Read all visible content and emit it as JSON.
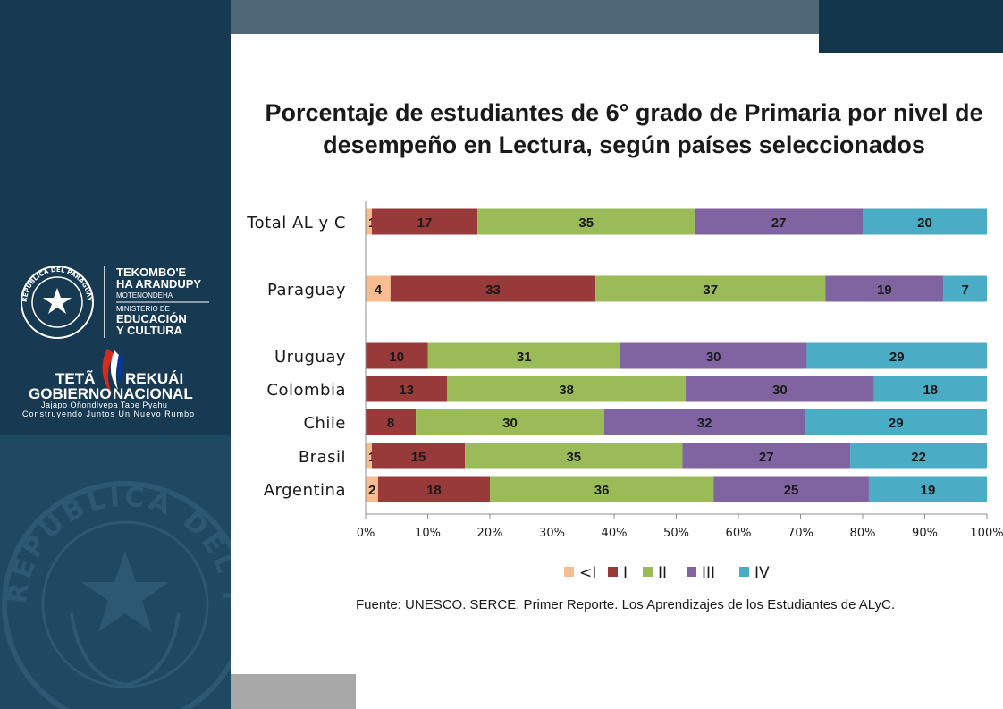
{
  "branding": {
    "ministry_line1": "TEKOMBO'E",
    "ministry_line2": "HA ARANDUPY",
    "ministry_line3": "MOTENONDEHA",
    "ministry_line4": "MINISTERIO DE",
    "ministry_line5": "EDUCACIÓN",
    "ministry_line6": "Y CULTURA",
    "seal_text": "REPUBLICA DEL PARAGUAY",
    "gov_line1a": "TETÃ",
    "gov_line1b": "REKUÁI",
    "gov_line2a": "GOBIERNO",
    "gov_line2b": "NACIONAL",
    "gov_tagline1": "Jajapo Oñondivepa Tape Pyahu",
    "gov_tagline2": "Construyendo Juntos Un Nuevo Rumbo",
    "watermark_text": "REPUBLICA DEL PARAGUAY"
  },
  "colors": {
    "sidebar": "#173a52",
    "lt_I": "#f7bc90",
    "I": "#983a3a",
    "II": "#9bbb59",
    "III": "#8064a2",
    "IV": "#4bacc6"
  },
  "chart_data": {
    "type": "bar",
    "orientation": "horizontal",
    "stacked": "percent",
    "title": "Porcentaje de estudiantes de 6° grado de Primaria por nivel de desempeño en Lectura, según países seleccionados",
    "categories": [
      "Total AL y C",
      "Paraguay",
      "Uruguay",
      "Colombia",
      "Chile",
      "Brasil",
      "Argentina"
    ],
    "series": [
      {
        "name": "<I",
        "values": [
          1,
          4,
          0,
          0,
          0,
          1,
          2
        ]
      },
      {
        "name": "I",
        "values": [
          17,
          33,
          10,
          13,
          8,
          15,
          18
        ]
      },
      {
        "name": "II",
        "values": [
          35,
          37,
          31,
          38,
          30,
          35,
          36
        ]
      },
      {
        "name": "III",
        "values": [
          27,
          19,
          30,
          30,
          32,
          27,
          25
        ]
      },
      {
        "name": "IV",
        "values": [
          20,
          7,
          29,
          18,
          29,
          22,
          19
        ]
      }
    ],
    "xlim": [
      0,
      100
    ],
    "xticks": [
      "0%",
      "10%",
      "20%",
      "30%",
      "40%",
      "50%",
      "60%",
      "70%",
      "80%",
      "90%",
      "100%"
    ],
    "legend_position": "bottom",
    "grid": false
  },
  "source": "Fuente: UNESCO. SERCE. Primer Reporte. Los Aprendizajes de los Estudiantes de ALyC."
}
